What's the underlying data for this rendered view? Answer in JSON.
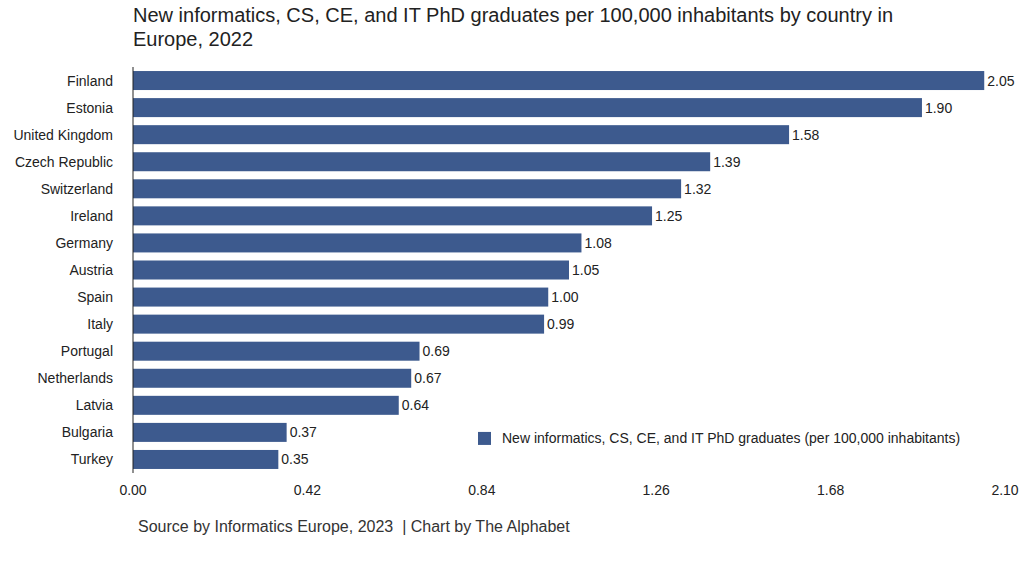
{
  "chart_data": {
    "type": "bar",
    "orientation": "horizontal",
    "title": "New informatics, CS, CE, and IT PhD graduates per 100,000 inhabitants by country in Europe, 2022",
    "annotations": [
      "Source by Informatics Europe, 2023  | Chart by The Alphabet"
    ],
    "categories": [
      "Finland",
      "Estonia",
      "United Kingdom",
      "Czech Republic",
      "Switzerland",
      "Ireland",
      "Germany",
      "Austria",
      "Spain",
      "Italy",
      "Portugal",
      "Netherlands",
      "Latvia",
      "Bulgaria",
      "Turkey"
    ],
    "series": [
      {
        "name": "New informatics, CS, CE, and IT PhD graduates (per 100,000 inhabitants)",
        "color": "#3d5a8e",
        "values": [
          2.05,
          1.9,
          1.58,
          1.39,
          1.32,
          1.25,
          1.08,
          1.05,
          1.0,
          0.99,
          0.69,
          0.67,
          0.64,
          0.37,
          0.35
        ],
        "value_labels": [
          "2.05",
          "1.90",
          "1.58",
          "1.39",
          "1.32",
          "1.25",
          "1.08",
          "1.05",
          "1.00",
          "0.99",
          "0.69",
          "0.67",
          "0.64",
          "0.37",
          "0.35"
        ]
      }
    ],
    "xlim": [
      0,
      2.1
    ],
    "xticks": [
      {
        "value": 0,
        "label": "0.00"
      },
      0.42,
      0.84,
      1.26,
      1.68,
      {
        "value": 2.1,
        "label": "2.10"
      }
    ],
    "grid": false,
    "legend": "lower right",
    "data_labels": true
  }
}
